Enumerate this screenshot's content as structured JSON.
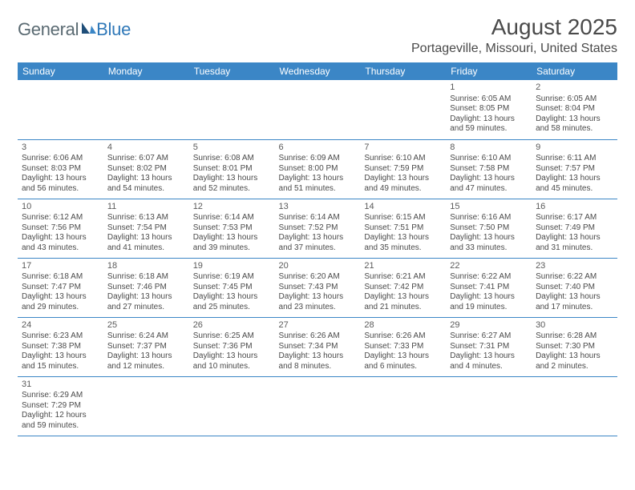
{
  "logo": {
    "part1": "General",
    "part2": "Blue"
  },
  "title": "August 2025",
  "location": "Portageville, Missouri, United States",
  "colors": {
    "header_bg": "#3b86c6",
    "header_text": "#ffffff",
    "cell_border": "#3b86c6",
    "body_text": "#4a4a4a",
    "logo_gray": "#5a6a72",
    "logo_blue": "#2f78b8",
    "page_bg": "#ffffff"
  },
  "typography": {
    "title_fontsize": 28,
    "location_fontsize": 16,
    "weekday_fontsize": 12,
    "daynum_fontsize": 11,
    "detail_fontsize": 10
  },
  "weekdays": [
    "Sunday",
    "Monday",
    "Tuesday",
    "Wednesday",
    "Thursday",
    "Friday",
    "Saturday"
  ],
  "weeks": [
    [
      null,
      null,
      null,
      null,
      null,
      {
        "day": "1",
        "sunrise": "Sunrise: 6:05 AM",
        "sunset": "Sunset: 8:05 PM",
        "daylight": "Daylight: 13 hours and 59 minutes."
      },
      {
        "day": "2",
        "sunrise": "Sunrise: 6:05 AM",
        "sunset": "Sunset: 8:04 PM",
        "daylight": "Daylight: 13 hours and 58 minutes."
      }
    ],
    [
      {
        "day": "3",
        "sunrise": "Sunrise: 6:06 AM",
        "sunset": "Sunset: 8:03 PM",
        "daylight": "Daylight: 13 hours and 56 minutes."
      },
      {
        "day": "4",
        "sunrise": "Sunrise: 6:07 AM",
        "sunset": "Sunset: 8:02 PM",
        "daylight": "Daylight: 13 hours and 54 minutes."
      },
      {
        "day": "5",
        "sunrise": "Sunrise: 6:08 AM",
        "sunset": "Sunset: 8:01 PM",
        "daylight": "Daylight: 13 hours and 52 minutes."
      },
      {
        "day": "6",
        "sunrise": "Sunrise: 6:09 AM",
        "sunset": "Sunset: 8:00 PM",
        "daylight": "Daylight: 13 hours and 51 minutes."
      },
      {
        "day": "7",
        "sunrise": "Sunrise: 6:10 AM",
        "sunset": "Sunset: 7:59 PM",
        "daylight": "Daylight: 13 hours and 49 minutes."
      },
      {
        "day": "8",
        "sunrise": "Sunrise: 6:10 AM",
        "sunset": "Sunset: 7:58 PM",
        "daylight": "Daylight: 13 hours and 47 minutes."
      },
      {
        "day": "9",
        "sunrise": "Sunrise: 6:11 AM",
        "sunset": "Sunset: 7:57 PM",
        "daylight": "Daylight: 13 hours and 45 minutes."
      }
    ],
    [
      {
        "day": "10",
        "sunrise": "Sunrise: 6:12 AM",
        "sunset": "Sunset: 7:56 PM",
        "daylight": "Daylight: 13 hours and 43 minutes."
      },
      {
        "day": "11",
        "sunrise": "Sunrise: 6:13 AM",
        "sunset": "Sunset: 7:54 PM",
        "daylight": "Daylight: 13 hours and 41 minutes."
      },
      {
        "day": "12",
        "sunrise": "Sunrise: 6:14 AM",
        "sunset": "Sunset: 7:53 PM",
        "daylight": "Daylight: 13 hours and 39 minutes."
      },
      {
        "day": "13",
        "sunrise": "Sunrise: 6:14 AM",
        "sunset": "Sunset: 7:52 PM",
        "daylight": "Daylight: 13 hours and 37 minutes."
      },
      {
        "day": "14",
        "sunrise": "Sunrise: 6:15 AM",
        "sunset": "Sunset: 7:51 PM",
        "daylight": "Daylight: 13 hours and 35 minutes."
      },
      {
        "day": "15",
        "sunrise": "Sunrise: 6:16 AM",
        "sunset": "Sunset: 7:50 PM",
        "daylight": "Daylight: 13 hours and 33 minutes."
      },
      {
        "day": "16",
        "sunrise": "Sunrise: 6:17 AM",
        "sunset": "Sunset: 7:49 PM",
        "daylight": "Daylight: 13 hours and 31 minutes."
      }
    ],
    [
      {
        "day": "17",
        "sunrise": "Sunrise: 6:18 AM",
        "sunset": "Sunset: 7:47 PM",
        "daylight": "Daylight: 13 hours and 29 minutes."
      },
      {
        "day": "18",
        "sunrise": "Sunrise: 6:18 AM",
        "sunset": "Sunset: 7:46 PM",
        "daylight": "Daylight: 13 hours and 27 minutes."
      },
      {
        "day": "19",
        "sunrise": "Sunrise: 6:19 AM",
        "sunset": "Sunset: 7:45 PM",
        "daylight": "Daylight: 13 hours and 25 minutes."
      },
      {
        "day": "20",
        "sunrise": "Sunrise: 6:20 AM",
        "sunset": "Sunset: 7:43 PM",
        "daylight": "Daylight: 13 hours and 23 minutes."
      },
      {
        "day": "21",
        "sunrise": "Sunrise: 6:21 AM",
        "sunset": "Sunset: 7:42 PM",
        "daylight": "Daylight: 13 hours and 21 minutes."
      },
      {
        "day": "22",
        "sunrise": "Sunrise: 6:22 AM",
        "sunset": "Sunset: 7:41 PM",
        "daylight": "Daylight: 13 hours and 19 minutes."
      },
      {
        "day": "23",
        "sunrise": "Sunrise: 6:22 AM",
        "sunset": "Sunset: 7:40 PM",
        "daylight": "Daylight: 13 hours and 17 minutes."
      }
    ],
    [
      {
        "day": "24",
        "sunrise": "Sunrise: 6:23 AM",
        "sunset": "Sunset: 7:38 PM",
        "daylight": "Daylight: 13 hours and 15 minutes."
      },
      {
        "day": "25",
        "sunrise": "Sunrise: 6:24 AM",
        "sunset": "Sunset: 7:37 PM",
        "daylight": "Daylight: 13 hours and 12 minutes."
      },
      {
        "day": "26",
        "sunrise": "Sunrise: 6:25 AM",
        "sunset": "Sunset: 7:36 PM",
        "daylight": "Daylight: 13 hours and 10 minutes."
      },
      {
        "day": "27",
        "sunrise": "Sunrise: 6:26 AM",
        "sunset": "Sunset: 7:34 PM",
        "daylight": "Daylight: 13 hours and 8 minutes."
      },
      {
        "day": "28",
        "sunrise": "Sunrise: 6:26 AM",
        "sunset": "Sunset: 7:33 PM",
        "daylight": "Daylight: 13 hours and 6 minutes."
      },
      {
        "day": "29",
        "sunrise": "Sunrise: 6:27 AM",
        "sunset": "Sunset: 7:31 PM",
        "daylight": "Daylight: 13 hours and 4 minutes."
      },
      {
        "day": "30",
        "sunrise": "Sunrise: 6:28 AM",
        "sunset": "Sunset: 7:30 PM",
        "daylight": "Daylight: 13 hours and 2 minutes."
      }
    ],
    [
      {
        "day": "31",
        "sunrise": "Sunrise: 6:29 AM",
        "sunset": "Sunset: 7:29 PM",
        "daylight": "Daylight: 12 hours and 59 minutes."
      },
      null,
      null,
      null,
      null,
      null,
      null
    ]
  ]
}
